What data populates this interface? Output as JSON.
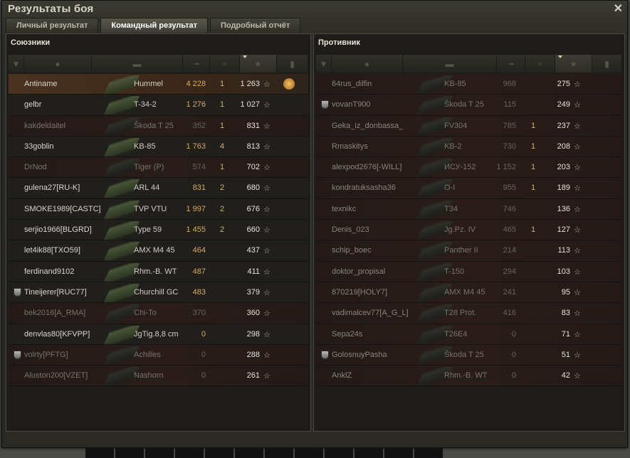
{
  "window": {
    "title": "Результаты боя",
    "close_icon": "close-icon"
  },
  "tabs": [
    {
      "label": "Личный результат",
      "active": false
    },
    {
      "label": "Командный результат",
      "active": true
    },
    {
      "label": "Подробный отчёт",
      "active": false
    }
  ],
  "columns": [
    "clan-icon",
    "player-icon",
    "tank-icon",
    "damage-icon",
    "kills-icon",
    "xp-star-icon (sorted)",
    "medal-icon"
  ],
  "colors": {
    "damage": "#d8a860",
    "highlight_row": "#4a3220",
    "dead_row": "#2a1c19"
  },
  "allies": {
    "title": "Союзники",
    "rows": [
      {
        "name": "Antiname",
        "tank": "Hummel",
        "damage": "4 228",
        "kills": "1",
        "xp": "1 263",
        "alive": true,
        "me": true,
        "medal": true
      },
      {
        "name": "gelbr",
        "tank": "T-34-2",
        "damage": "1 276",
        "kills": "1",
        "xp": "1 027",
        "alive": true
      },
      {
        "name": "kakdeldaitel",
        "tank": "Škoda T 25",
        "damage": "352",
        "kills": "1",
        "xp": "831",
        "alive": false
      },
      {
        "name": "33goblin",
        "tank": "KB-85",
        "damage": "1 763",
        "kills": "4",
        "xp": "813",
        "alive": true
      },
      {
        "name": "DrNod",
        "tank": "Tiger (P)",
        "damage": "574",
        "kills": "1",
        "xp": "702",
        "alive": false
      },
      {
        "name": "gulena27[RU-K]",
        "tank": "ARL 44",
        "damage": "831",
        "kills": "2",
        "xp": "680",
        "alive": true
      },
      {
        "name": "SMOKE1989[CASTC]",
        "tank": "TVP VTU",
        "damage": "1 997",
        "kills": "2",
        "xp": "676",
        "alive": true
      },
      {
        "name": "serjio1966[BLGRD]",
        "tank": "Type 59",
        "damage": "1 455",
        "kills": "2",
        "xp": "660",
        "alive": true
      },
      {
        "name": "let4ik88[TXO59]",
        "tank": "AMX M4 45",
        "damage": "464",
        "kills": "",
        "xp": "437",
        "alive": true
      },
      {
        "name": "ferdinand9102",
        "tank": "Rhm.-B. WT",
        "damage": "487",
        "kills": "",
        "xp": "411",
        "alive": true
      },
      {
        "name": "Tineijerer[RUC77]",
        "tank": "Churchill GC",
        "damage": "483",
        "kills": "",
        "xp": "379",
        "alive": true,
        "clan": true
      },
      {
        "name": "bek2016[A_RMA]",
        "tank": "Chi-To",
        "damage": "370",
        "kills": "",
        "xp": "360",
        "alive": false
      },
      {
        "name": "denvlas80[KFVPP]",
        "tank": "JgTig.8,8 cm",
        "damage": "0",
        "kills": "",
        "xp": "298",
        "alive": true
      },
      {
        "name": "volrty[PFTG]",
        "tank": "Achilles",
        "damage": "0",
        "kills": "",
        "xp": "288",
        "alive": false,
        "clan": true
      },
      {
        "name": "Aluston200[VZET]",
        "tank": "Nashorn",
        "damage": "0",
        "kills": "",
        "xp": "261",
        "alive": false
      }
    ]
  },
  "enemies": {
    "title": "Противник",
    "rows": [
      {
        "name": "64rus_dilfin",
        "tank": "KB-85",
        "damage": "968",
        "kills": "",
        "xp": "275"
      },
      {
        "name": "vovanT900",
        "tank": "Škoda T 25",
        "damage": "115",
        "kills": "",
        "xp": "249",
        "clan": true
      },
      {
        "name": "Geka_iz_donbassa_",
        "tank": "FV304",
        "damage": "785",
        "kills": "1",
        "xp": "237"
      },
      {
        "name": "Rmaskitys",
        "tank": "KB-2",
        "damage": "730",
        "kills": "1",
        "xp": "208"
      },
      {
        "name": "alexpod2676[-WILL]",
        "tank": "ИСУ-152",
        "damage": "1 152",
        "kills": "1",
        "xp": "203"
      },
      {
        "name": "kondratuksasha36",
        "tank": "O-I",
        "damage": "955",
        "kills": "1",
        "xp": "189"
      },
      {
        "name": "texnikc",
        "tank": "T34",
        "damage": "746",
        "kills": "",
        "xp": "136"
      },
      {
        "name": "Denis_023",
        "tank": "Jg.Pz. IV",
        "damage": "465",
        "kills": "1",
        "xp": "127"
      },
      {
        "name": "schip_boec",
        "tank": "Panther II",
        "damage": "214",
        "kills": "",
        "xp": "113"
      },
      {
        "name": "doktor_propisal",
        "tank": "T-150",
        "damage": "294",
        "kills": "",
        "xp": "103"
      },
      {
        "name": "870219[HOLY7]",
        "tank": "AMX M4 45",
        "damage": "241",
        "kills": "",
        "xp": "95"
      },
      {
        "name": "vadimalcev77[A_G_L]",
        "tank": "T28 Prot.",
        "damage": "416",
        "kills": "",
        "xp": "83"
      },
      {
        "name": "Sepa24s",
        "tank": "T26E4",
        "damage": "0",
        "kills": "",
        "xp": "71"
      },
      {
        "name": "GolosnuyPasha",
        "tank": "Škoda T 25",
        "damage": "0",
        "kills": "",
        "xp": "51",
        "clan": true
      },
      {
        "name": "AnklZ",
        "tank": "Rhm.-B. WT",
        "damage": "0",
        "kills": "",
        "xp": "42"
      }
    ]
  }
}
